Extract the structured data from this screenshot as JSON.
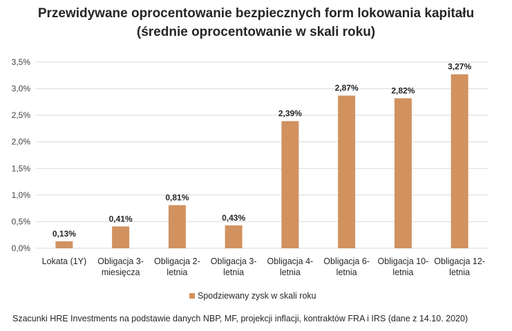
{
  "chart_data": {
    "type": "bar",
    "title": "Przewidywane oprocentowanie bezpiecznych form lokowania kapitału",
    "subtitle": "(średnie oprocentowanie w skali roku)",
    "categories": [
      [
        "Lokata (1Y)"
      ],
      [
        "Obligacja 3-",
        "miesięcza"
      ],
      [
        "Obligacja 2-",
        "letnia"
      ],
      [
        "Obligacja 3-",
        "letnia"
      ],
      [
        "Obligacja 4-",
        "letnia"
      ],
      [
        "Obligacja 6-",
        "letnia"
      ],
      [
        "Obligacja 10-",
        "letnia"
      ],
      [
        "Obligacja 12-",
        "letnia"
      ]
    ],
    "series": [
      {
        "name": "Spodziewany zysk w skali roku",
        "values": [
          0.13,
          0.41,
          0.81,
          0.43,
          2.39,
          2.87,
          2.82,
          3.27
        ],
        "data_labels": [
          "0,13%",
          "0,41%",
          "0,81%",
          "0,43%",
          "2,39%",
          "2,87%",
          "2,82%",
          "3,27%"
        ],
        "color": "#D19260"
      }
    ],
    "y_ticks": [
      0,
      0.5,
      1.0,
      1.5,
      2.0,
      2.5,
      3.0,
      3.5
    ],
    "y_tick_labels": [
      "0,0%",
      "0,5%",
      "1,0%",
      "1,5%",
      "2,0%",
      "2,5%",
      "3,0%",
      "3,5%"
    ],
    "ylim": [
      0,
      3.5
    ],
    "grid": true,
    "legend_position": "bottom",
    "gridline_color": "#D9D9D9"
  },
  "footnote": "Szacunki HRE Investments na podstawie danych NBP, MF, projekcji inflacji, kontraktów FRA i IRS (dane z 14.10. 2020)"
}
